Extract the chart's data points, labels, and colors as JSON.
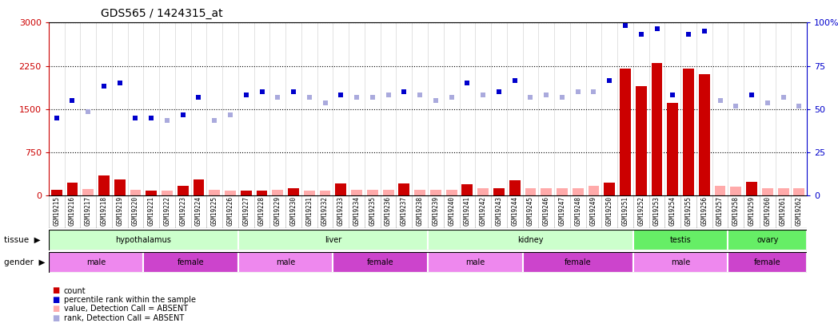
{
  "title": "GDS565 / 1424315_at",
  "samples": [
    "GSM19215",
    "GSM19216",
    "GSM19217",
    "GSM19218",
    "GSM19219",
    "GSM19220",
    "GSM19221",
    "GSM19222",
    "GSM19223",
    "GSM19224",
    "GSM19225",
    "GSM19226",
    "GSM19227",
    "GSM19228",
    "GSM19229",
    "GSM19230",
    "GSM19231",
    "GSM19232",
    "GSM19233",
    "GSM19234",
    "GSM19235",
    "GSM19236",
    "GSM19237",
    "GSM19238",
    "GSM19239",
    "GSM19240",
    "GSM19241",
    "GSM19242",
    "GSM19243",
    "GSM19244",
    "GSM19245",
    "GSM19246",
    "GSM19247",
    "GSM19248",
    "GSM19249",
    "GSM19250",
    "GSM19251",
    "GSM19252",
    "GSM19253",
    "GSM19254",
    "GSM19255",
    "GSM19256",
    "GSM19257",
    "GSM19258",
    "GSM19259",
    "GSM19260",
    "GSM19261",
    "GSM19262"
  ],
  "bar_values": [
    100,
    220,
    110,
    350,
    280,
    100,
    80,
    80,
    170,
    280,
    100,
    90,
    90,
    80,
    100,
    120,
    90,
    90,
    210,
    100,
    100,
    100,
    210,
    100,
    100,
    100,
    200,
    120,
    130,
    270,
    130,
    130,
    120,
    130,
    160,
    220,
    2200,
    1900,
    2300,
    1600,
    2200,
    2100,
    160,
    150,
    230,
    130,
    130,
    130
  ],
  "bar_absent": [
    false,
    false,
    true,
    false,
    false,
    true,
    false,
    true,
    false,
    false,
    true,
    true,
    false,
    false,
    true,
    false,
    true,
    true,
    false,
    true,
    true,
    true,
    false,
    true,
    true,
    true,
    false,
    true,
    false,
    false,
    true,
    true,
    true,
    true,
    true,
    false,
    false,
    false,
    false,
    false,
    false,
    false,
    true,
    true,
    false,
    true,
    true,
    true
  ],
  "rank_values": [
    1350,
    1650,
    1450,
    1900,
    1950,
    1350,
    1350,
    1300,
    1400,
    1700,
    1300,
    1400,
    1750,
    1800,
    1700,
    1800,
    1700,
    1600,
    1750,
    1700,
    1700,
    1750,
    1800,
    1750,
    1650,
    1700,
    1950,
    1750,
    1800,
    2000,
    1700,
    1750,
    1700,
    1800,
    1800,
    2000,
    2950,
    2800,
    2900,
    1750,
    2800,
    2850,
    1650,
    1550,
    1750,
    1600,
    1700,
    1550
  ],
  "rank_absent": [
    false,
    false,
    true,
    false,
    false,
    false,
    false,
    true,
    false,
    false,
    true,
    true,
    false,
    false,
    true,
    false,
    true,
    true,
    false,
    true,
    true,
    true,
    false,
    true,
    true,
    true,
    false,
    true,
    false,
    false,
    true,
    true,
    true,
    true,
    true,
    false,
    false,
    false,
    false,
    false,
    false,
    false,
    true,
    true,
    false,
    true,
    true,
    true
  ],
  "tissue_groups": [
    {
      "label": "hypothalamus",
      "start": 0,
      "end": 12,
      "color": "#ccffcc"
    },
    {
      "label": "liver",
      "start": 12,
      "end": 24,
      "color": "#ccffcc"
    },
    {
      "label": "kidney",
      "start": 24,
      "end": 37,
      "color": "#ccffcc"
    },
    {
      "label": "testis",
      "start": 37,
      "end": 43,
      "color": "#66ee66"
    },
    {
      "label": "ovary",
      "start": 43,
      "end": 48,
      "color": "#66ee66"
    }
  ],
  "gender_groups": [
    {
      "label": "male",
      "start": 0,
      "end": 6,
      "color": "#ee88ee"
    },
    {
      "label": "female",
      "start": 6,
      "end": 12,
      "color": "#cc44cc"
    },
    {
      "label": "male",
      "start": 12,
      "end": 18,
      "color": "#ee88ee"
    },
    {
      "label": "female",
      "start": 18,
      "end": 24,
      "color": "#cc44cc"
    },
    {
      "label": "male",
      "start": 24,
      "end": 30,
      "color": "#ee88ee"
    },
    {
      "label": "female",
      "start": 30,
      "end": 37,
      "color": "#cc44cc"
    },
    {
      "label": "male",
      "start": 37,
      "end": 43,
      "color": "#ee88ee"
    },
    {
      "label": "female",
      "start": 43,
      "end": 48,
      "color": "#cc44cc"
    }
  ],
  "ylim_left": [
    0,
    3000
  ],
  "yticks_left": [
    0,
    750,
    1500,
    2250,
    3000
  ],
  "yticks_right_labels": [
    "0",
    "25",
    "50",
    "75",
    "100%"
  ],
  "bar_color_present": "#cc0000",
  "bar_color_absent": "#ffaaaa",
  "rank_color_present": "#0000cc",
  "rank_color_absent": "#aaaadd",
  "left_axis_color": "#cc0000",
  "right_axis_color": "#0000cc",
  "grid_color": "#000000"
}
